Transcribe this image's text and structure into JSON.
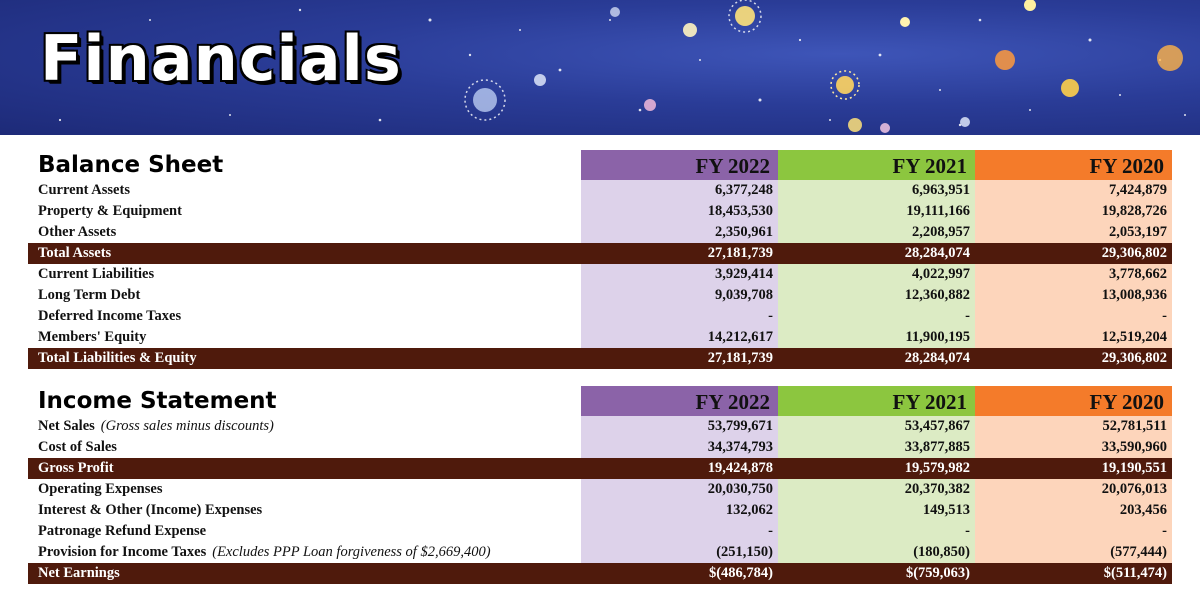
{
  "page": {
    "title": "Financials"
  },
  "columns": [
    "FY 2022",
    "FY 2021",
    "FY 2020"
  ],
  "balance_sheet": {
    "title": "Balance Sheet",
    "rows": [
      {
        "label": "Current Assets",
        "note": "",
        "total": false,
        "values": [
          "6,377,248",
          "6,963,951",
          "7,424,879"
        ]
      },
      {
        "label": "Property & Equipment",
        "note": "",
        "total": false,
        "values": [
          "18,453,530",
          "19,111,166",
          "19,828,726"
        ]
      },
      {
        "label": "Other Assets",
        "note": "",
        "total": false,
        "values": [
          "2,350,961",
          "2,208,957",
          "2,053,197"
        ]
      },
      {
        "label": "Total Assets",
        "note": "",
        "total": true,
        "values": [
          "27,181,739",
          "28,284,074",
          "29,306,802"
        ]
      },
      {
        "label": "Current Liabilities",
        "note": "",
        "total": false,
        "values": [
          "3,929,414",
          "4,022,997",
          "3,778,662"
        ]
      },
      {
        "label": "Long Term Debt",
        "note": "",
        "total": false,
        "values": [
          "9,039,708",
          "12,360,882",
          "13,008,936"
        ]
      },
      {
        "label": "Deferred Income Taxes",
        "note": "",
        "total": false,
        "values": [
          "-",
          "-",
          "-"
        ]
      },
      {
        "label": "Members' Equity",
        "note": "",
        "total": false,
        "values": [
          "14,212,617",
          "11,900,195",
          "12,519,204"
        ]
      },
      {
        "label": "Total Liabilities & Equity",
        "note": "",
        "total": true,
        "values": [
          "27,181,739",
          "28,284,074",
          "29,306,802"
        ]
      }
    ]
  },
  "income_statement": {
    "title": "Income Statement",
    "rows": [
      {
        "label": "Net Sales",
        "note": "(Gross sales minus discounts)",
        "total": false,
        "values": [
          "53,799,671",
          "53,457,867",
          "52,781,511"
        ]
      },
      {
        "label": "Cost of Sales",
        "note": "",
        "total": false,
        "values": [
          "34,374,793",
          "33,877,885",
          "33,590,960"
        ]
      },
      {
        "label": "Gross Profit",
        "note": "",
        "total": true,
        "values": [
          "19,424,878",
          "19,579,982",
          "19,190,551"
        ]
      },
      {
        "label": "Operating Expenses",
        "note": "",
        "total": false,
        "values": [
          "20,030,750",
          "20,370,382",
          "20,076,013"
        ]
      },
      {
        "label": "Interest & Other (Income) Expenses",
        "note": "",
        "total": false,
        "values": [
          "132,062",
          "149,513",
          "203,456"
        ]
      },
      {
        "label": "Patronage Refund Expense",
        "note": "",
        "total": false,
        "values": [
          "-",
          "-",
          "-"
        ]
      },
      {
        "label": "Provision for Income Taxes",
        "note": "(Excludes PPP Loan forgiveness of $2,669,400)",
        "total": false,
        "values": [
          "(251,150)",
          "(180,850)",
          "(577,444)"
        ]
      },
      {
        "label": "Net Earnings",
        "note": "",
        "total": true,
        "values": [
          "$(486,784)",
          "$(759,063)",
          "$(511,474)"
        ]
      }
    ]
  },
  "colors": {
    "fy2022_header": "#8b63a8",
    "fy2021_header": "#8cc63f",
    "fy2020_header": "#f47b2a",
    "fy2022_cell": "#ddd2ea",
    "fy2021_cell": "#dcebc4",
    "fy2020_cell": "#fdd5bb",
    "total_row": "#4f1a0c",
    "banner": "#2a3c97"
  }
}
